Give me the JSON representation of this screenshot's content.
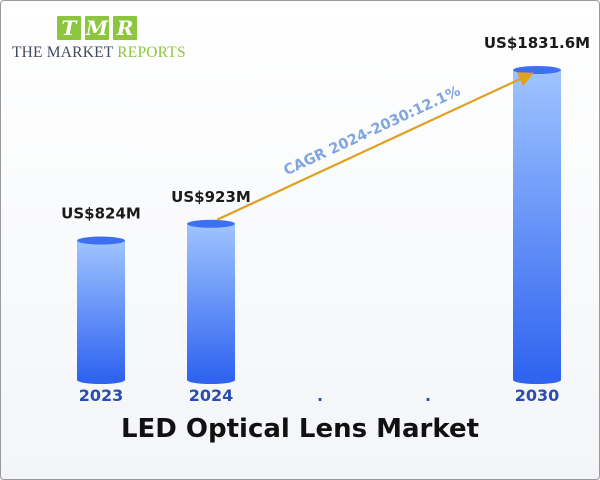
{
  "logo": {
    "letters": [
      "T",
      "M",
      "R"
    ],
    "line_a": "THE MARKET ",
    "line_b": "REPORTS",
    "colors": {
      "green": "#8cc63f",
      "navy": "#3f4a5e"
    }
  },
  "chart_data": {
    "type": "bar",
    "title": "LED Optical Lens Market",
    "categories": [
      "2023",
      "2024",
      ".",
      ".",
      "2030"
    ],
    "series": [
      {
        "values": [
          824,
          923,
          null,
          null,
          1831.6
        ]
      }
    ],
    "data_labels": [
      "US$824M",
      "US$923M",
      "",
      "",
      "US$1831.6M"
    ],
    "unit": "US$ Million",
    "ylim": [
      0,
      2000
    ],
    "annotation": {
      "text": "CAGR 2024-2030:12.1%",
      "from_category": "2024",
      "to_category": "2030",
      "color": "#e0a020"
    },
    "grid": false,
    "legend": "none",
    "bar_colors": {
      "top": "#9fc4ff",
      "bottom": "#2f63f0",
      "cap": "#3d6ff2"
    }
  }
}
